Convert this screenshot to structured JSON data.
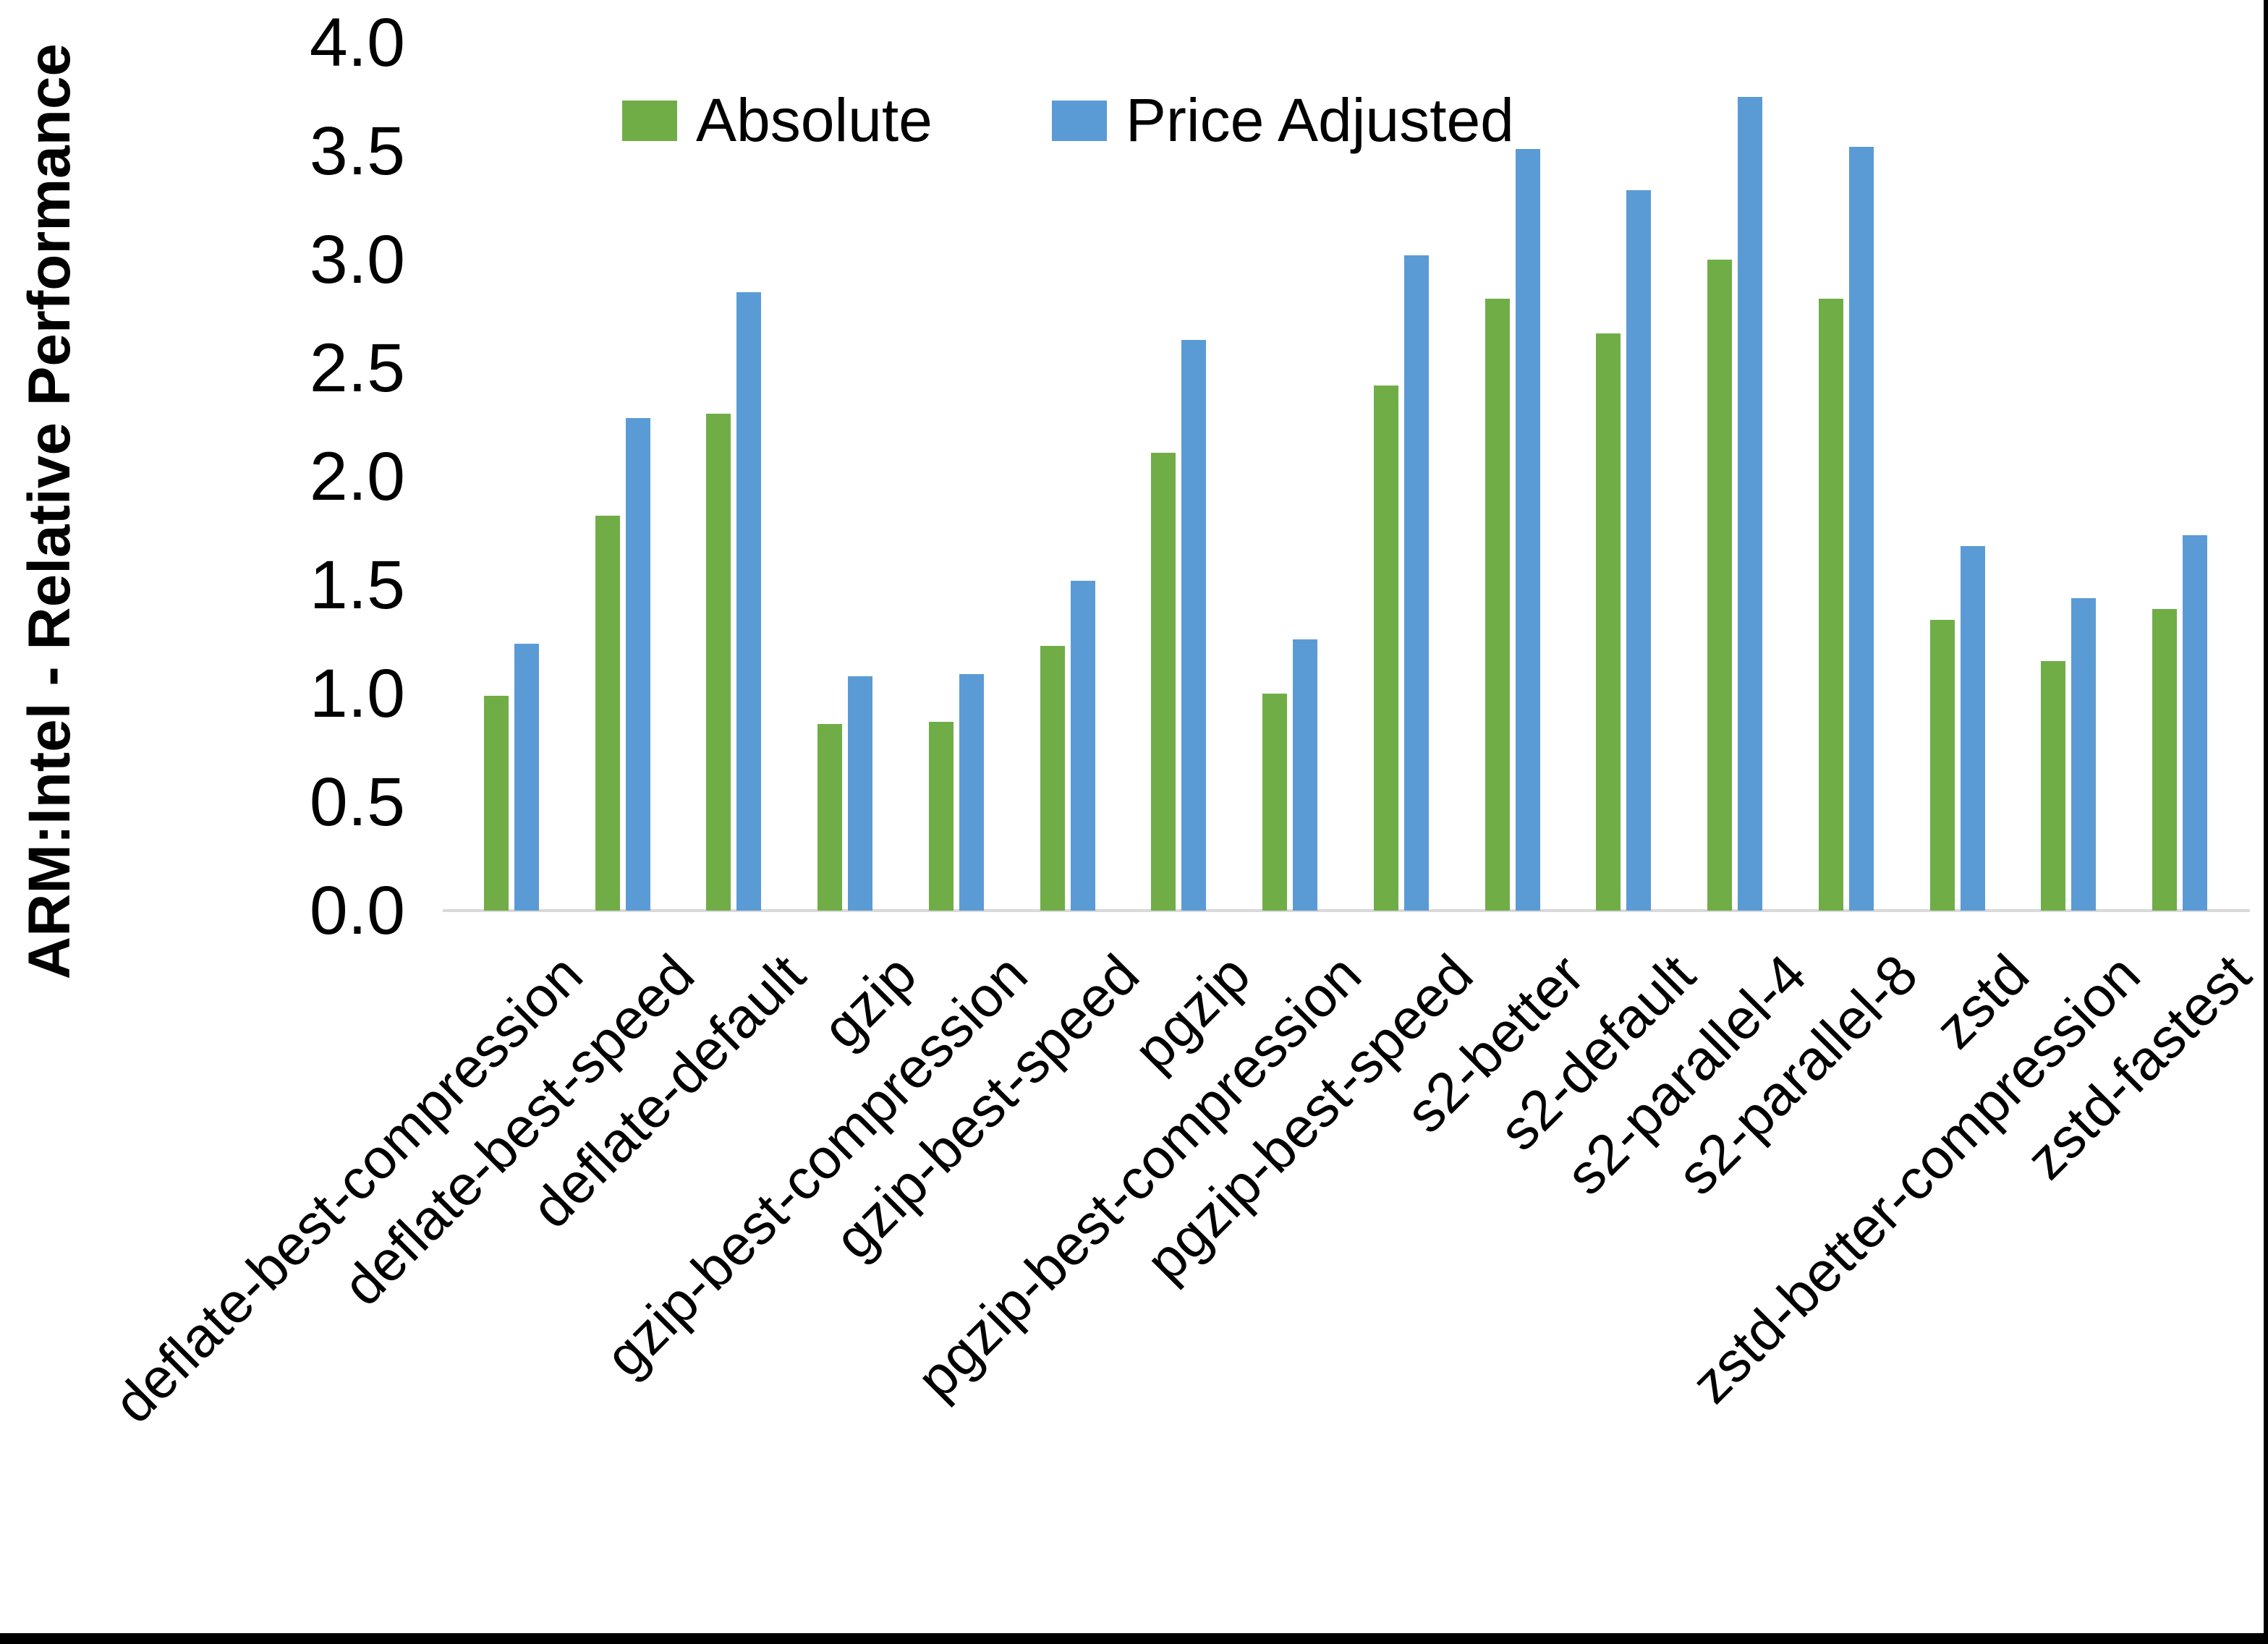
{
  "page": {
    "background": "#ffffff",
    "frame_color": "#000000"
  },
  "chart_data": {
    "type": "bar",
    "title": "",
    "xlabel": "",
    "ylabel": "ARM:Intel - Relative Performance",
    "ylim": [
      0.0,
      4.0
    ],
    "ytick_step": 0.5,
    "yticks": [
      "0.0",
      "0.5",
      "1.0",
      "1.5",
      "2.0",
      "2.5",
      "3.0",
      "3.5",
      "4.0"
    ],
    "grid": false,
    "legend_position": "top-center",
    "xticks_rotation": 45,
    "axis_line_color": "#d9d9d9",
    "text_color": "#000000",
    "categories": [
      "deflate-best-compression",
      "deflate-best-speed",
      "deflate-default",
      "gzip",
      "gzip-best-compression",
      "gzip-best-speed",
      "pgzip",
      "pgzip-best-compression",
      "pgzip-best-speed",
      "s2-better",
      "s2-default",
      "s2-parallel-4",
      "s2-parallel-8",
      "zstd",
      "zstd-better-compression",
      "zstd-fastest"
    ],
    "series": [
      {
        "name": "Absolute",
        "color": "#70AD47",
        "values": [
          0.99,
          1.82,
          2.29,
          0.86,
          0.87,
          1.22,
          2.11,
          1.0,
          2.42,
          2.82,
          2.66,
          3.0,
          2.82,
          1.34,
          1.15,
          1.39
        ]
      },
      {
        "name": "Price Adjusted",
        "color": "#5B9BD5",
        "values": [
          1.23,
          2.27,
          2.85,
          1.08,
          1.09,
          1.52,
          2.63,
          1.25,
          3.02,
          3.51,
          3.32,
          3.75,
          3.52,
          1.68,
          1.44,
          1.73
        ]
      }
    ]
  }
}
